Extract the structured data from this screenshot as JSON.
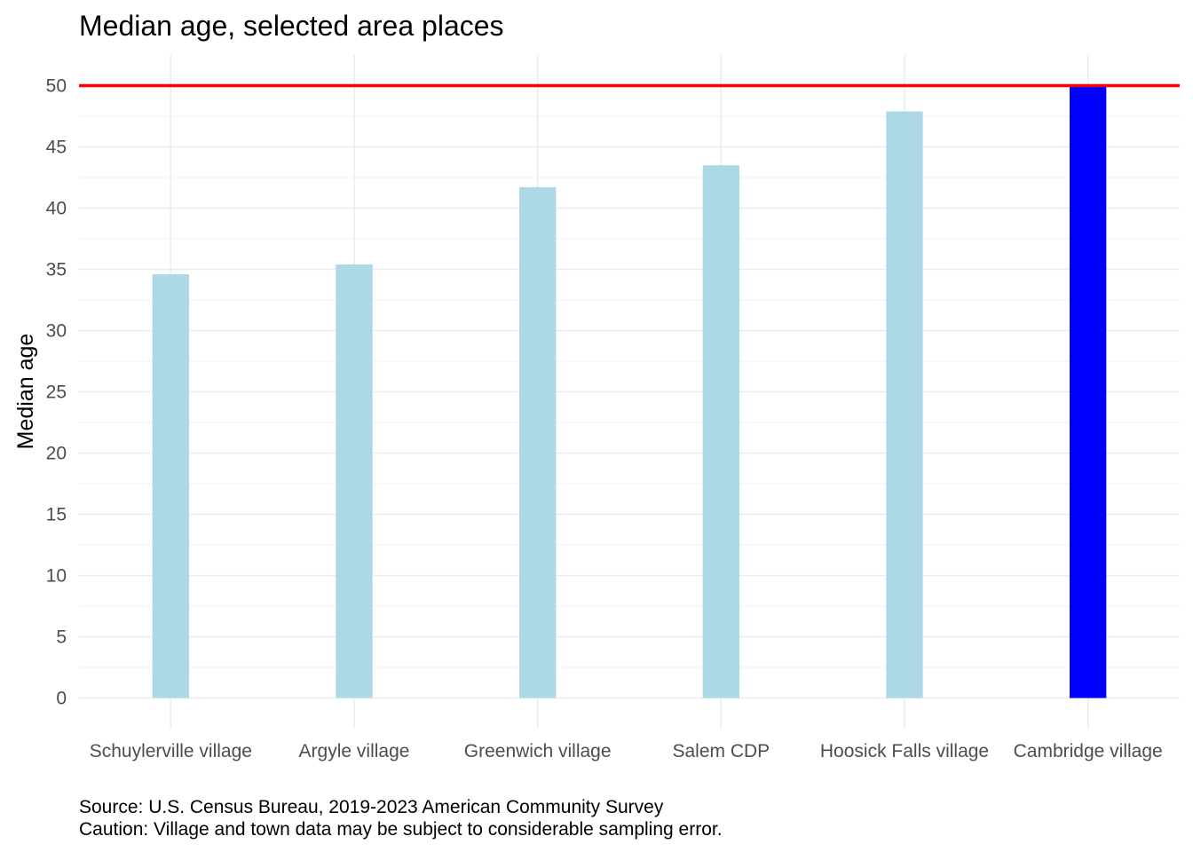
{
  "chart_data": {
    "type": "bar",
    "title": "Median age, selected area places",
    "xlabel": "",
    "ylabel": "Median age",
    "categories": [
      "Schuylerville village",
      "Argyle village",
      "Greenwich village",
      "Salem CDP",
      "Hoosick Falls village",
      "Cambridge village"
    ],
    "values": [
      34.6,
      35.4,
      41.7,
      43.5,
      47.9,
      49.9
    ],
    "highlight_index": 5,
    "bar_color": "#add8e6",
    "highlight_color": "#0000ff",
    "reference_line": {
      "value": 50,
      "color": "#ff0000"
    },
    "ylim": [
      -2.5,
      52.5
    ],
    "yticks": [
      0,
      5,
      10,
      15,
      20,
      25,
      30,
      35,
      40,
      45,
      50
    ],
    "ytick_labels": [
      "0",
      "5",
      "10",
      "15",
      "20",
      "25",
      "30",
      "35",
      "40",
      "45",
      "50"
    ],
    "grid": true,
    "legend": "none",
    "caption": [
      "Source: U.S. Census Bureau, 2019-2023 American Community Survey",
      "Caution: Village and town data may be subject to considerable sampling error."
    ]
  }
}
